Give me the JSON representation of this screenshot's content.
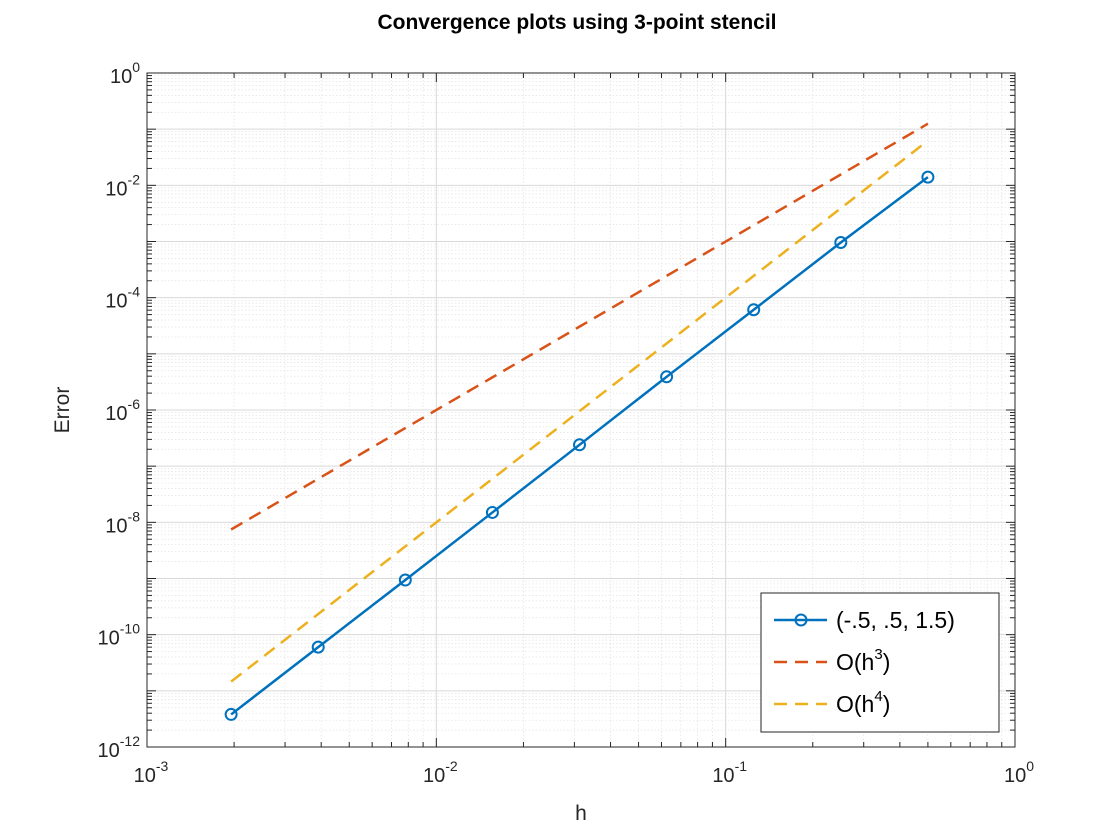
{
  "chart_data": {
    "type": "line",
    "title": "Convergence plots using 3-point stencil",
    "xlabel": "h",
    "ylabel": "Error",
    "x_scale": "log",
    "y_scale": "log",
    "xlim": [
      0.001,
      1
    ],
    "ylim": [
      1e-12,
      1
    ],
    "grid": true,
    "minor_grid": true,
    "x_ticks": [
      {
        "base": "10",
        "exp": "-3",
        "value": 0.001
      },
      {
        "base": "10",
        "exp": "-2",
        "value": 0.01
      },
      {
        "base": "10",
        "exp": "-1",
        "value": 0.1
      },
      {
        "base": "10",
        "exp": "0",
        "value": 1
      }
    ],
    "y_ticks": [
      {
        "base": "10",
        "exp": "-12",
        "value": 1e-12
      },
      {
        "base": "10",
        "exp": "-10",
        "value": 1e-10
      },
      {
        "base": "10",
        "exp": "-8",
        "value": 1e-08
      },
      {
        "base": "10",
        "exp": "-6",
        "value": 1e-06
      },
      {
        "base": "10",
        "exp": "-4",
        "value": 0.0001
      },
      {
        "base": "10",
        "exp": "-2",
        "value": 0.01
      },
      {
        "base": "10",
        "exp": "0",
        "value": 1
      }
    ],
    "legend_position": "bottom-right",
    "series": [
      {
        "name": "(-.5, .5, 1.5)",
        "color": "#0072BD",
        "style": "solid",
        "marker": "circle",
        "x": [
          0.001953125,
          0.00390625,
          0.0078125,
          0.015625,
          0.03125,
          0.0625,
          0.125,
          0.25,
          0.5
        ],
        "y": [
          3.8e-12,
          6e-11,
          9.4e-10,
          1.5e-08,
          2.4e-07,
          3.9e-06,
          6.1e-05,
          0.00096,
          0.014
        ]
      },
      {
        "name": "O(h",
        "name_sup": "3",
        "name_suffix": ")",
        "color": "#D95319",
        "style": "dashed",
        "marker": "none",
        "x": [
          0.001953125,
          0.00390625,
          0.0078125,
          0.015625,
          0.03125,
          0.0625,
          0.125,
          0.25,
          0.5
        ],
        "y": [
          7.45e-09,
          5.96e-08,
          4.77e-07,
          3.81e-06,
          3.05e-05,
          0.000244,
          0.00195,
          0.0156,
          0.125
        ]
      },
      {
        "name": "O(h",
        "name_sup": "4",
        "name_suffix": ")",
        "color": "#EDB120",
        "style": "dashed",
        "marker": "none",
        "x": [
          0.001953125,
          0.00390625,
          0.0078125,
          0.015625,
          0.03125,
          0.0625,
          0.125,
          0.25,
          0.5
        ],
        "y": [
          1.46e-11,
          2.33e-10,
          3.73e-09,
          5.96e-08,
          9.54e-07,
          1.53e-05,
          0.000244,
          0.00391,
          0.0625
        ]
      }
    ]
  }
}
